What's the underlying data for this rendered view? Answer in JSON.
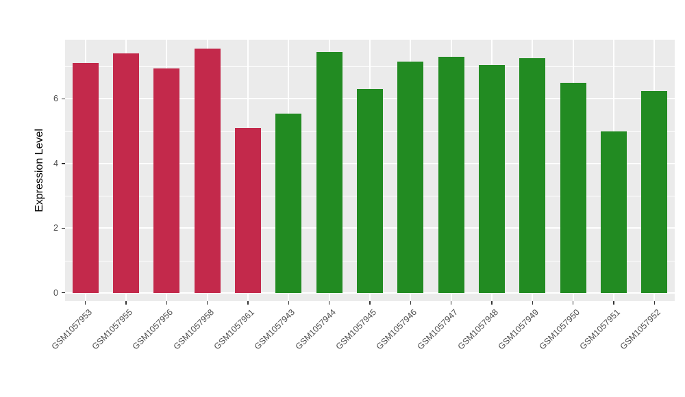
{
  "chart_data": {
    "type": "bar",
    "title": "",
    "xlabel": "",
    "ylabel": "Expression Level",
    "categories": [
      "GSM1057953",
      "GSM1057955",
      "GSM1057956",
      "GSM1057958",
      "GSM1057961",
      "GSM1057943",
      "GSM1057944",
      "GSM1057945",
      "GSM1057946",
      "GSM1057947",
      "GSM1057948",
      "GSM1057949",
      "GSM1057950",
      "GSM1057951",
      "GSM1057952"
    ],
    "values": [
      7.1,
      7.4,
      6.95,
      7.55,
      5.1,
      5.55,
      7.45,
      6.3,
      7.15,
      7.3,
      7.05,
      7.25,
      6.5,
      5.0,
      6.25
    ],
    "colors": [
      "#C3294B",
      "#C3294B",
      "#C3294B",
      "#C3294B",
      "#C3294B",
      "#228B22",
      "#228B22",
      "#228B22",
      "#228B22",
      "#228B22",
      "#228B22",
      "#228B22",
      "#228B22",
      "#228B22",
      "#228B22"
    ],
    "group_colors": {
      "red": "#C3294B",
      "green": "#228B22"
    },
    "y_ticks_major": [
      0,
      2,
      4,
      6
    ],
    "y_tick_labels": [
      "0",
      "2",
      "4",
      "6"
    ],
    "y_ticks_minor": [
      1,
      3,
      5,
      7
    ],
    "ylim": [
      -0.26,
      7.83
    ],
    "grid": "on",
    "legend": "none",
    "panel_bg": "#EBEBEB",
    "grid_color": "#FFFFFF",
    "axis_text_color": "#4D4D4D",
    "tick_color": "#333333"
  }
}
